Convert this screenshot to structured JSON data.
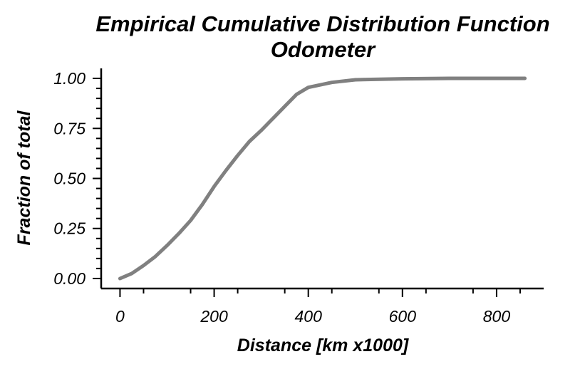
{
  "chart_data": {
    "type": "line",
    "title": "Empirical Cumulative Distribution Function",
    "subtitle": "Odometer",
    "xlabel": "Distance [km x1000]",
    "ylabel": "Fraction of total",
    "xlim": [
      -40,
      900
    ],
    "ylim": [
      -0.05,
      1.05
    ],
    "x_ticks": [
      0,
      200,
      400,
      600,
      800
    ],
    "x_tick_labels": [
      "0",
      "200",
      "400",
      "600",
      "800"
    ],
    "y_ticks": [
      0,
      0.25,
      0.5,
      0.75,
      1.0
    ],
    "y_tick_labels": [
      "0.00",
      "0.25",
      "0.50",
      "0.75",
      "1.00"
    ],
    "grid": false,
    "series": [
      {
        "color": "#808080",
        "x": [
          0,
          25,
          50,
          75,
          100,
          125,
          150,
          175,
          200,
          225,
          250,
          275,
          300,
          325,
          350,
          375,
          400,
          450,
          500,
          600,
          700,
          800,
          860
        ],
        "y": [
          0.0,
          0.025,
          0.065,
          0.11,
          0.165,
          0.225,
          0.29,
          0.37,
          0.46,
          0.54,
          0.615,
          0.685,
          0.74,
          0.8,
          0.86,
          0.92,
          0.955,
          0.98,
          0.993,
          0.998,
          1.0,
          1.0,
          1.0
        ]
      }
    ]
  }
}
